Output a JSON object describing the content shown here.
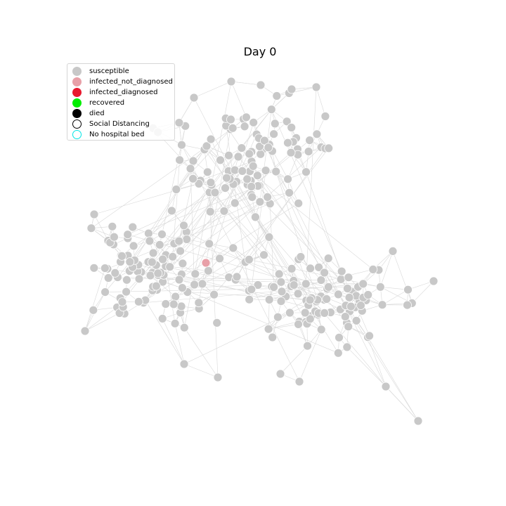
{
  "title": "Day 0",
  "colors": {
    "edge": "#d9d9d9",
    "node_edge": "#ffffff"
  },
  "legend": [
    {
      "label": "susceptible",
      "color": "#c8c8c8",
      "style": "fill"
    },
    {
      "label": "infected_not_diagnosed",
      "color": "#e8a0a8",
      "style": "fill"
    },
    {
      "label": "infected_diagnosed",
      "color": "#e8182e",
      "style": "fill"
    },
    {
      "label": "recovered",
      "color": "#00ee00",
      "style": "fill"
    },
    {
      "label": "died",
      "color": "#000000",
      "style": "fill"
    },
    {
      "label": "Social Distancing",
      "color": "#000000",
      "style": "ring"
    },
    {
      "label": "No hospital bed",
      "color": "#00e5e5",
      "style": "ring"
    }
  ],
  "network": {
    "node_count": 304,
    "infected_not_diagnosed": 1,
    "infected_diagnosed": 0,
    "recovered": 0,
    "died": 0
  }
}
